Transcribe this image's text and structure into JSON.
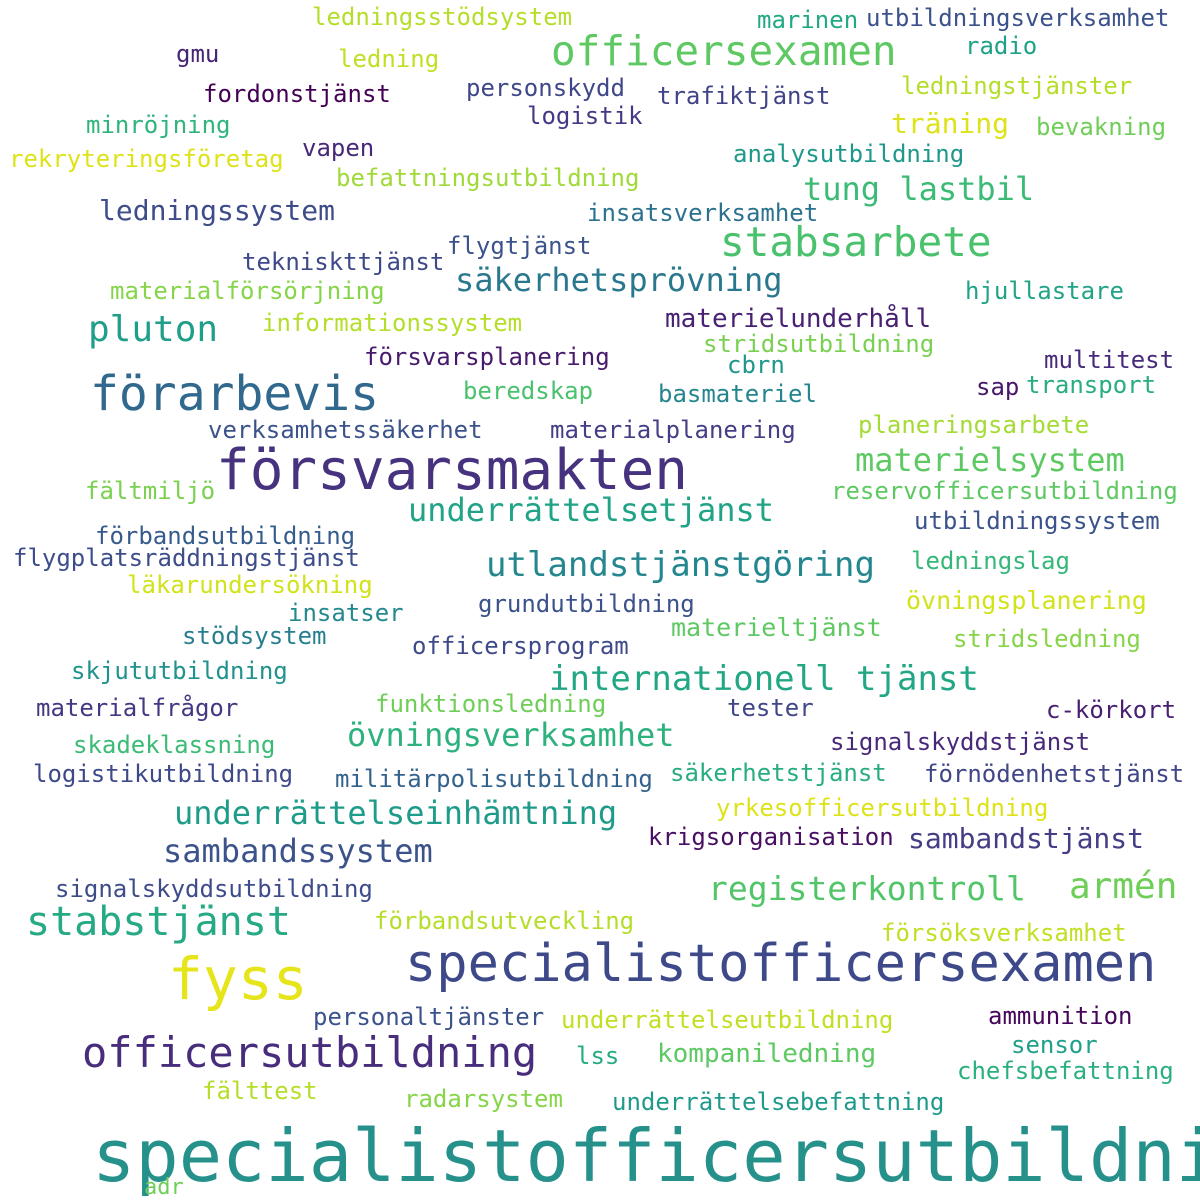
{
  "words": [
    {
      "text": "specialistofficersutbildning",
      "color": "#26918b"
    },
    {
      "text": "specialistofficersexamen",
      "color": "#3e4989"
    },
    {
      "text": "försvarsmakten",
      "color": "#46327e"
    },
    {
      "text": "officersutbildning",
      "color": "#472d7b"
    },
    {
      "text": "förarbevis",
      "color": "#31688e"
    },
    {
      "text": "fyss",
      "color": "#e6e41a"
    },
    {
      "text": "officersexamen",
      "color": "#5ec962"
    },
    {
      "text": "stabsarbete",
      "color": "#4ac16d"
    },
    {
      "text": "stabstjänst",
      "color": "#26a985"
    },
    {
      "text": "armén",
      "color": "#6ece58"
    },
    {
      "text": "pluton",
      "color": "#1f9e89"
    },
    {
      "text": "registerkontroll",
      "color": "#52c569"
    },
    {
      "text": "utlandstjänstgöring",
      "color": "#24868e"
    },
    {
      "text": "internationell tjänst",
      "color": "#22a785"
    },
    {
      "text": "övningsverksamhet",
      "color": "#2db27d"
    },
    {
      "text": "underrättelseinhämtning",
      "color": "#1e9c89"
    },
    {
      "text": "säkerhetsprövning",
      "color": "#2a788e"
    },
    {
      "text": "tung lastbil",
      "color": "#3bbb75"
    },
    {
      "text": "materielsystem",
      "color": "#5ec962"
    },
    {
      "text": "underrättelsetjänst",
      "color": "#20a386"
    },
    {
      "text": "sambandssystem",
      "color": "#3b528b"
    },
    {
      "text": "ledningssystem",
      "color": "#3e4c8a"
    },
    {
      "text": "sambandstjänst",
      "color": "#433e85"
    },
    {
      "text": "ledningsstödsystem",
      "color": "#b5de2b"
    },
    {
      "text": "marinen",
      "color": "#22a884"
    },
    {
      "text": "utbildningsverksamhet",
      "color": "#3b528b"
    },
    {
      "text": "radio",
      "color": "#1fa188"
    },
    {
      "text": "gmu",
      "color": "#482475"
    },
    {
      "text": "ledning",
      "color": "#c2df23"
    },
    {
      "text": "ledningstjänster",
      "color": "#b5de2b"
    },
    {
      "text": "fordonstjänst",
      "color": "#440154"
    },
    {
      "text": "personskydd",
      "color": "#3f4788"
    },
    {
      "text": "trafiktjänst",
      "color": "#414487"
    },
    {
      "text": "träning",
      "color": "#dde318"
    },
    {
      "text": "minröjning",
      "color": "#2fb47c"
    },
    {
      "text": "logistik",
      "color": "#443983"
    },
    {
      "text": "bevakning",
      "color": "#6ece58"
    },
    {
      "text": "rekryteringsföretag",
      "color": "#dde318"
    },
    {
      "text": "vapen",
      "color": "#482878"
    },
    {
      "text": "analysutbildning",
      "color": "#1f988b"
    },
    {
      "text": "befattningsutbildning",
      "color": "#a0da39"
    },
    {
      "text": "insatsverksamhet",
      "color": "#2c728e"
    },
    {
      "text": "flygtjänst",
      "color": "#3b528b"
    },
    {
      "text": "tekniskttjänst",
      "color": "#3e4989"
    },
    {
      "text": "hjullastare",
      "color": "#20a386"
    },
    {
      "text": "materialförsörjning",
      "color": "#86d549"
    },
    {
      "text": "informationssystem",
      "color": "#b5de2b"
    },
    {
      "text": "materielunderhåll",
      "color": "#482173"
    },
    {
      "text": "stridsutbildning",
      "color": "#7ad151"
    },
    {
      "text": "försvarsplanering",
      "color": "#481a6c"
    },
    {
      "text": "cbrn",
      "color": "#1f968b"
    },
    {
      "text": "multitest",
      "color": "#472a7a"
    },
    {
      "text": "sap",
      "color": "#481769"
    },
    {
      "text": "transport",
      "color": "#27ad81"
    },
    {
      "text": "beredskap",
      "color": "#4ac16d"
    },
    {
      "text": "basmateriel",
      "color": "#25858e"
    },
    {
      "text": "verksamhetssäkerhet",
      "color": "#3b528b"
    },
    {
      "text": "materialplanering",
      "color": "#433e85"
    },
    {
      "text": "planeringsarbete",
      "color": "#a5db36"
    },
    {
      "text": "fältmiljö",
      "color": "#7ad151"
    },
    {
      "text": "reservofficersutbildning",
      "color": "#5ec962"
    },
    {
      "text": "förbandsutbildning",
      "color": "#365c8d"
    },
    {
      "text": "utbildningssystem",
      "color": "#3b528b"
    },
    {
      "text": "flygplatsräddningstjänst",
      "color": "#3d4d8a"
    },
    {
      "text": "ledningslag",
      "color": "#35b779"
    },
    {
      "text": "läkarundersökning",
      "color": "#d2e21b"
    },
    {
      "text": "insatser",
      "color": "#23898e"
    },
    {
      "text": "grundutbildning",
      "color": "#3b528b"
    },
    {
      "text": "övningsplanering",
      "color": "#d2e21b"
    },
    {
      "text": "stödsystem",
      "color": "#277f8e"
    },
    {
      "text": "officersprogram",
      "color": "#3e4a89"
    },
    {
      "text": "materieltjänst",
      "color": "#5ec962"
    },
    {
      "text": "stridsledning",
      "color": "#86d549"
    },
    {
      "text": "skjututbildning",
      "color": "#20928c"
    },
    {
      "text": "funktionsledning",
      "color": "#6ece58"
    },
    {
      "text": "materialfrågor",
      "color": "#453882"
    },
    {
      "text": "tester",
      "color": "#404688"
    },
    {
      "text": "c-körkort",
      "color": "#481f70"
    },
    {
      "text": "skadeklassning",
      "color": "#3bbb75"
    },
    {
      "text": "signalskyddstjänst",
      "color": "#482878"
    },
    {
      "text": "logistikutbildning",
      "color": "#3e4989"
    },
    {
      "text": "militärpolisutbildning",
      "color": "#33638d"
    },
    {
      "text": "säkerhetstjänst",
      "color": "#27ad81"
    },
    {
      "text": "förnödenhetstjänst",
      "color": "#404688"
    },
    {
      "text": "yrkesofficersutbildning",
      "color": "#dde318"
    },
    {
      "text": "krigsorganisation",
      "color": "#470e61"
    },
    {
      "text": "signalskyddsutbildning",
      "color": "#3e4c8a"
    },
    {
      "text": "förbandsutveckling",
      "color": "#b5de2b"
    },
    {
      "text": "försöksverksamhet",
      "color": "#c2df23"
    },
    {
      "text": "personaltjänster",
      "color": "#3b528b"
    },
    {
      "text": "underrättelseutbildning",
      "color": "#c2df23"
    },
    {
      "text": "ammunition",
      "color": "#450559"
    },
    {
      "text": "lss",
      "color": "#25ab82"
    },
    {
      "text": "kompaniledning",
      "color": "#5ec962"
    },
    {
      "text": "sensor",
      "color": "#1fa088"
    },
    {
      "text": "chefsbefattning",
      "color": "#2ab07f"
    },
    {
      "text": "fälttest",
      "color": "#b5de2b"
    },
    {
      "text": "radarsystem",
      "color": "#86d549"
    },
    {
      "text": "underrättelsebefattning",
      "color": "#1f9a8a"
    },
    {
      "text": "adr",
      "color": "#6ece58"
    }
  ]
}
